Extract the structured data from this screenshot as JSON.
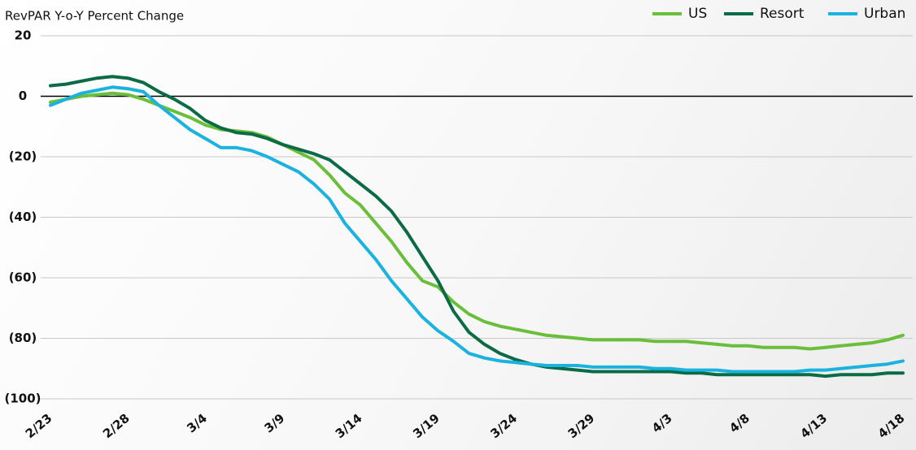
{
  "chart_data": {
    "type": "line",
    "title": "RevPAR Y-o-Y Percent Change",
    "categories": [
      "2/23",
      null,
      null,
      null,
      null,
      "2/28",
      null,
      null,
      null,
      null,
      "3/4",
      null,
      null,
      null,
      null,
      "3/9",
      null,
      null,
      null,
      null,
      "3/14",
      null,
      null,
      null,
      null,
      "3/19",
      null,
      null,
      null,
      null,
      "3/24",
      null,
      null,
      null,
      null,
      "3/29",
      null,
      null,
      null,
      null,
      "4/3",
      null,
      null,
      null,
      null,
      "4/8",
      null,
      null,
      null,
      null,
      "4/13",
      null,
      null,
      null,
      null,
      "4/18"
    ],
    "series": [
      {
        "name": "US",
        "color": "#6abf3a",
        "values": [
          -2,
          -1,
          0,
          0.5,
          1,
          0.5,
          -1,
          -3,
          -5,
          -7,
          -9.5,
          -11,
          -11.5,
          -12,
          -13.5,
          -16,
          -18.5,
          -21,
          -26,
          -32,
          -36,
          -42,
          -48,
          -55,
          -61,
          -63,
          -68,
          -72,
          -74.5,
          -76,
          -77,
          -78,
          -79,
          -79.5,
          -80,
          -80.5,
          -80.5,
          -80.5,
          -80.5,
          -81,
          -81,
          -81,
          -81.5,
          -82,
          -82.5,
          -82.5,
          -83,
          -83,
          -83,
          -83.5,
          -83,
          -82.5,
          -82,
          -81.5,
          -80.5,
          -79
        ]
      },
      {
        "name": "Resort",
        "color": "#0b6b45",
        "values": [
          3.5,
          4,
          5,
          6,
          6.5,
          6,
          4.5,
          1.5,
          -1,
          -4,
          -8,
          -10.5,
          -12,
          -12.5,
          -14,
          -16,
          -17.5,
          -19,
          -21,
          -25,
          -29,
          -33,
          -38,
          -45,
          -53,
          -61,
          -71,
          -78,
          -82,
          -85,
          -87,
          -88.5,
          -89.5,
          -90,
          -90.5,
          -91,
          -91,
          -91,
          -91,
          -91,
          -91,
          -91.5,
          -91.5,
          -92,
          -92,
          -92,
          -92,
          -92,
          -92,
          -92,
          -92.5,
          -92,
          -92,
          -92,
          -91.5,
          -91.5
        ]
      },
      {
        "name": "Urban",
        "color": "#1ab3e0",
        "values": [
          -3,
          -1,
          1,
          2,
          3,
          2.5,
          1.5,
          -3,
          -7,
          -11,
          -14,
          -17,
          -17,
          -18,
          -20,
          -22.5,
          -25,
          -29,
          -34,
          -42,
          -48,
          -54,
          -61,
          -67,
          -73,
          -77.5,
          -81,
          -85,
          -86.5,
          -87.5,
          -88,
          -88.5,
          -89,
          -89,
          -89,
          -89.5,
          -89.5,
          -89.5,
          -89.5,
          -90,
          -90,
          -90.5,
          -90.5,
          -90.5,
          -91,
          -91,
          -91,
          -91,
          -91,
          -90.5,
          -90.5,
          -90,
          -89.5,
          -89,
          -88.5,
          -87.5
        ]
      }
    ],
    "ylim": [
      -100,
      20
    ],
    "yticks": [
      {
        "value": -100,
        "label": "(100)"
      },
      {
        "value": -80,
        "label": "(80)"
      },
      {
        "value": -60,
        "label": "(60)"
      },
      {
        "value": -40,
        "label": "(40)"
      },
      {
        "value": -20,
        "label": "(20)"
      },
      0,
      20
    ],
    "grid": true,
    "legend": "top-right"
  }
}
